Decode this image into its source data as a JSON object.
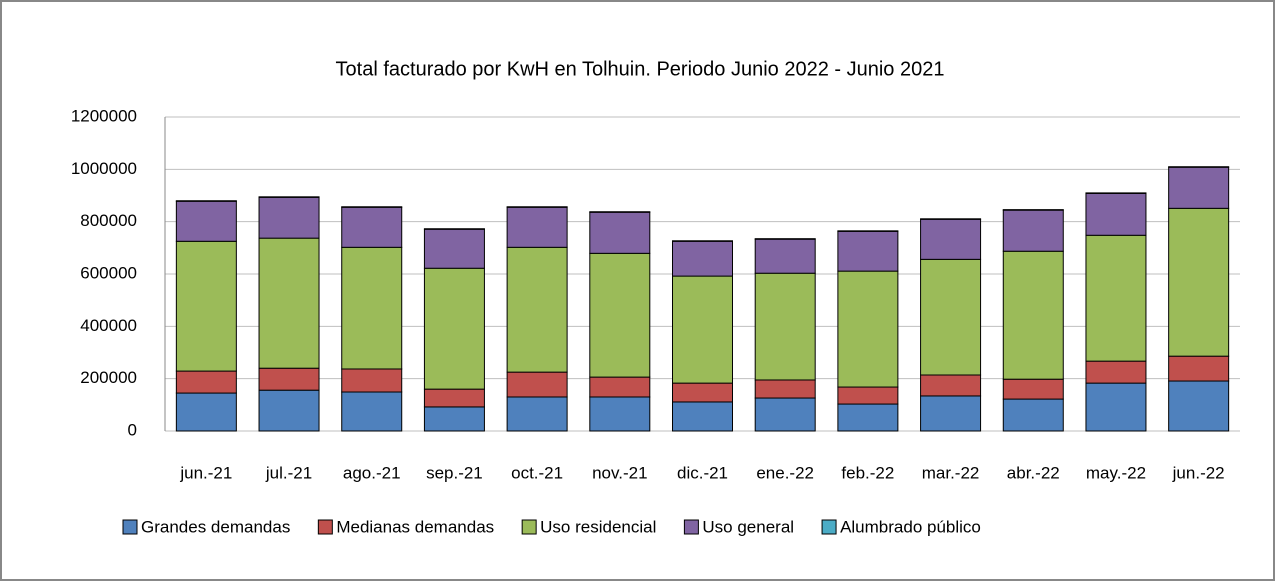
{
  "chart_data": {
    "type": "stacked_bar",
    "title": "Total facturado por KwH en Tolhuin. Periodo Junio 2022 - Junio 2021",
    "categories": [
      "jun.-21",
      "jul.-21",
      "ago.-21",
      "sep.-21",
      "oct.-21",
      "nov.-21",
      "dic.-21",
      "ene.-22",
      "feb.-22",
      "mar.-22",
      "abr.-22",
      "may.-22",
      "jun.-22"
    ],
    "series": [
      {
        "name": "Grandes demandas",
        "color": "#4f81bd",
        "values": [
          145000,
          156000,
          149000,
          92000,
          130000,
          130000,
          111000,
          126000,
          103000,
          134000,
          122000,
          183000,
          191000
        ]
      },
      {
        "name": "Medianas demandas",
        "color": "#c0504d",
        "values": [
          84000,
          84000,
          88000,
          68000,
          95000,
          76000,
          72000,
          69000,
          65000,
          80000,
          76000,
          84000,
          95000
        ]
      },
      {
        "name": "Uso residencial",
        "color": "#9bbb59",
        "values": [
          496000,
          497000,
          465000,
          462000,
          477000,
          473000,
          409000,
          408000,
          443000,
          442000,
          489000,
          481000,
          565000
        ]
      },
      {
        "name": "Uso general",
        "color": "#8064a2",
        "values": [
          153000,
          156000,
          153000,
          149000,
          153000,
          157000,
          133000,
          130000,
          152000,
          153000,
          157000,
          160000,
          157000
        ]
      },
      {
        "name": "Alumbrado público",
        "color": "#4bacc6",
        "values": [
          2000,
          2000,
          2000,
          2000,
          2000,
          2000,
          2000,
          2000,
          2000,
          2000,
          2000,
          2000,
          2000
        ]
      }
    ],
    "ylim": [
      0,
      1200000
    ],
    "yticks": [
      0,
      200000,
      400000,
      600000,
      800000,
      1000000,
      1200000
    ],
    "grid": true,
    "legend": "bottom"
  }
}
